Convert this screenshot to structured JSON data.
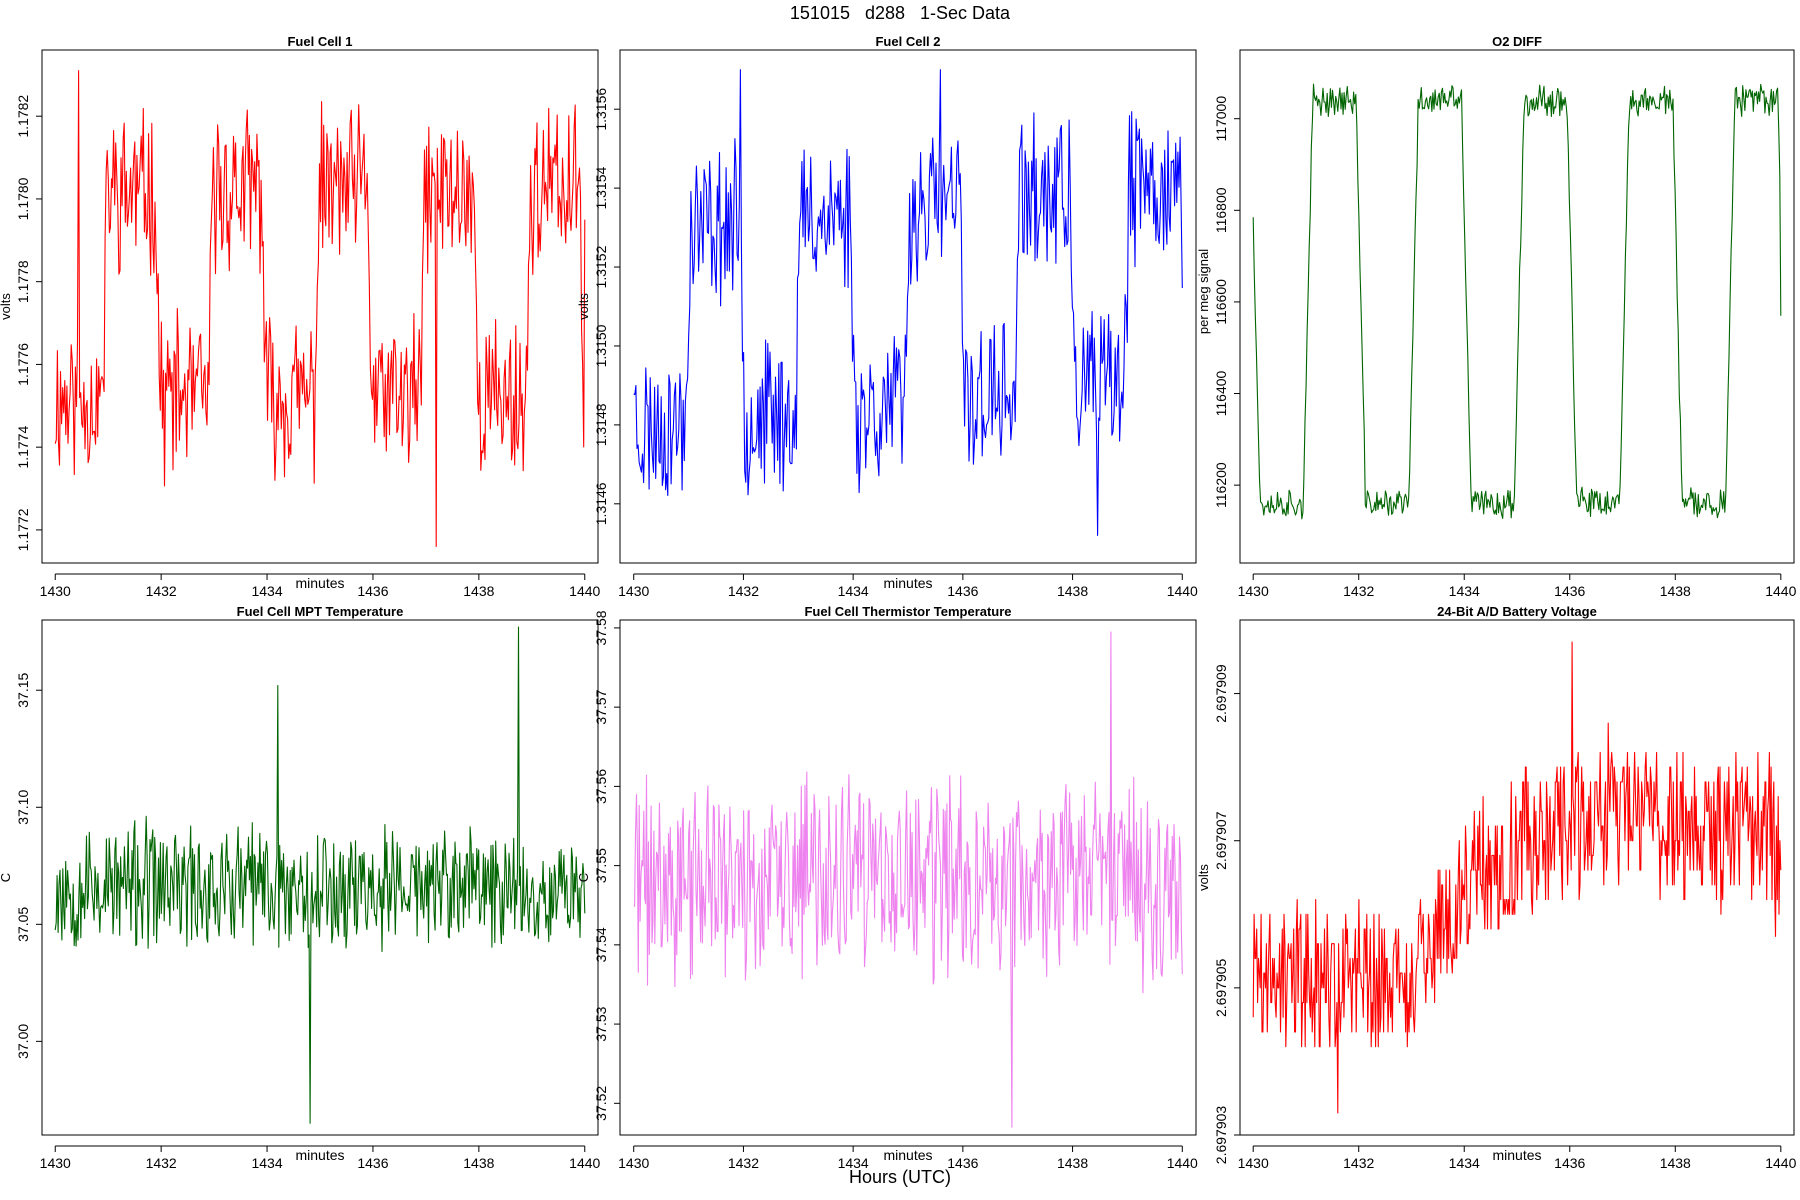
{
  "figure": {
    "title": "151015   d288   1-Sec Data",
    "footer_xlabel": "Hours (UTC)"
  },
  "chart_data": [
    {
      "type": "line",
      "title": "Fuel Cell 1",
      "xlabel": "minutes",
      "ylabel": "volts",
      "color": "#ff0000",
      "xlim": [
        1429.75,
        1440.25
      ],
      "ylim": [
        1.17712,
        1.17836
      ],
      "xticks": [
        1430,
        1432,
        1434,
        1436,
        1438,
        1440
      ],
      "yticks": [
        1.1772,
        1.1774,
        1.1776,
        1.1778,
        1.178,
        1.1782
      ],
      "ytick_labels": [
        "1.1772",
        "1.1774",
        "1.1776",
        "1.1778",
        "1.1780",
        "1.1782"
      ],
      "signal": {
        "kind": "square",
        "low": 1.17752,
        "high": 1.17802,
        "period": 2.0,
        "phase": 1430.9,
        "noise": 0.00032,
        "samples": 500,
        "spikes": [
          [
            1437.2,
            1.17716
          ],
          [
            1430.45,
            1.17831
          ]
        ],
        "end": 1.17795,
        "seed": 11
      }
    },
    {
      "type": "line",
      "title": "Fuel Cell 2",
      "xlabel": "minutes",
      "ylabel": "volts",
      "color": "#0000ff",
      "xlim": [
        1429.75,
        1440.25
      ],
      "ylim": [
        1.31445,
        1.31575
      ],
      "xticks": [
        1430,
        1432,
        1434,
        1436,
        1438,
        1440
      ],
      "yticks": [
        1.3146,
        1.3148,
        1.315,
        1.3152,
        1.3154,
        1.3156
      ],
      "ytick_labels": [
        "1.3146",
        "1.3148",
        "1.3150",
        "1.3152",
        "1.3154",
        "1.3156"
      ],
      "signal": {
        "kind": "square",
        "low": 1.31485,
        "high": 1.31535,
        "period": 2.0,
        "phase": 1430.95,
        "noise": 0.00032,
        "ramp": 0.00012,
        "samples": 500,
        "spikes": [
          [
            1431.95,
            1.3157
          ],
          [
            1435.6,
            1.3157
          ],
          [
            1438.45,
            1.31452
          ]
        ],
        "seed": 23
      }
    },
    {
      "type": "line",
      "title": "O2 DIFF",
      "xlabel": "",
      "ylabel": "per meg signal",
      "color": "#006400",
      "xlim": [
        1429.75,
        1440.25
      ],
      "ylim": [
        116030,
        117150
      ],
      "xticks": [
        1430,
        1432,
        1434,
        1436,
        1438,
        1440
      ],
      "yticks": [
        116200,
        116400,
        116600,
        116800,
        117000
      ],
      "ytick_labels": [
        "116200",
        "116400",
        "116600",
        "116800",
        "117000"
      ],
      "signal": {
        "kind": "square",
        "low": 116160,
        "high": 117040,
        "period": 2.0,
        "phase": 1430.95,
        "noise": 55,
        "edge": 0.18,
        "samples": 500,
        "end": 116570,
        "seed": 37
      }
    },
    {
      "type": "line",
      "title": "Fuel Cell MPT Temperature",
      "xlabel": "minutes",
      "ylabel": "C",
      "color": "#006400",
      "xlim": [
        1429.75,
        1440.25
      ],
      "ylim": [
        36.96,
        37.18
      ],
      "xticks": [
        1430,
        1432,
        1434,
        1436,
        1438,
        1440
      ],
      "yticks": [
        37.0,
        37.05,
        37.1,
        37.15
      ],
      "ytick_labels": [
        "37.00",
        "37.05",
        "37.10",
        "37.15"
      ],
      "signal": {
        "kind": "noise",
        "mean": 37.066,
        "noise": 0.045,
        "samples": 560,
        "spikes": [
          [
            1434.82,
            36.965
          ],
          [
            1438.75,
            37.177
          ],
          [
            1434.2,
            37.152
          ]
        ],
        "seed": 53
      }
    },
    {
      "type": "line",
      "title": "Fuel Cell Thermistor Temperature",
      "xlabel": "minutes",
      "ylabel": "C",
      "color": "#ee82ee",
      "xlim": [
        1429.75,
        1440.25
      ],
      "ylim": [
        37.516,
        37.581
      ],
      "xticks": [
        1430,
        1432,
        1434,
        1436,
        1438,
        1440
      ],
      "yticks": [
        37.52,
        37.53,
        37.54,
        37.55,
        37.56,
        37.57,
        37.58
      ],
      "ytick_labels": [
        "37.52",
        "37.53",
        "37.54",
        "37.55",
        "37.56",
        "37.57",
        "37.58"
      ],
      "signal": {
        "kind": "noise",
        "mean": 37.548,
        "noise": 0.021,
        "samples": 600,
        "spikes": [
          [
            1438.7,
            37.5795
          ],
          [
            1436.9,
            37.517
          ]
        ],
        "seed": 71
      }
    },
    {
      "type": "line",
      "title": "24-Bit A/D Battery Voltage",
      "xlabel": "minutes",
      "ylabel": "volts",
      "color": "#ff0000",
      "xlim": [
        1429.75,
        1440.25
      ],
      "ylim": [
        2.697903,
        2.69791
      ],
      "xticks": [
        1430,
        1432,
        1434,
        1436,
        1438,
        1440
      ],
      "yticks": [
        2.697903,
        2.697905,
        2.697907,
        2.697909
      ],
      "ytick_labels": [
        "2.697903",
        "2.697905",
        "2.697907",
        "2.697909"
      ],
      "signal": {
        "kind": "trend",
        "points": [
          [
            1430,
            2.6979052
          ],
          [
            1432.9,
            2.6979051
          ],
          [
            1434.2,
            2.6979064
          ],
          [
            1435.3,
            2.697907
          ],
          [
            1437.2,
            2.6979075
          ],
          [
            1438.5,
            2.6979072
          ],
          [
            1440,
            2.697907
          ]
        ],
        "noise": 1.8e-06,
        "samples": 600,
        "quantum": 2e-07,
        "spikes": [
          [
            1431.6,
            2.6979033
          ],
          [
            1436.05,
            2.6979097
          ],
          [
            1439.9,
            2.6979057
          ]
        ],
        "seed": 89
      }
    }
  ]
}
